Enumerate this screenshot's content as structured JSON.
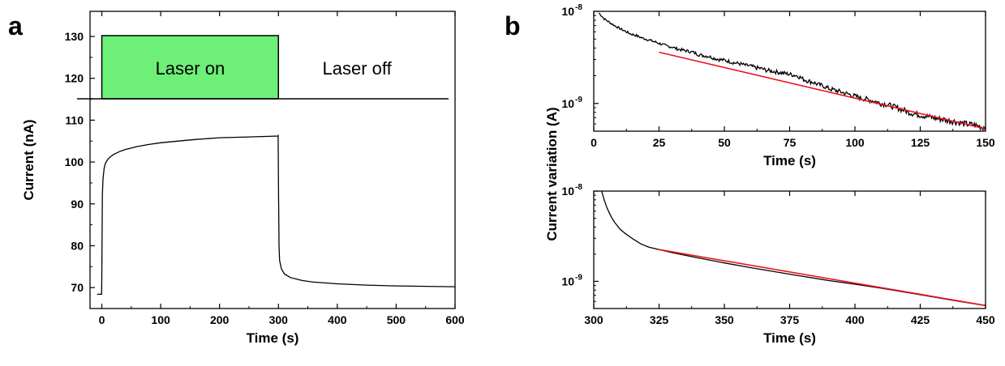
{
  "chart_data": [
    {
      "panel": "a",
      "type": "line",
      "xlabel": "Time (s)",
      "ylabel": "Current (nA)",
      "xlim": [
        -20,
        600
      ],
      "ylim": [
        65,
        136
      ],
      "xticks": [
        0,
        100,
        200,
        300,
        400,
        500,
        600
      ],
      "yticks": [
        70,
        80,
        90,
        100,
        110,
        120,
        130
      ],
      "annotations": [
        {
          "text": "Laser on",
          "x_from": 0,
          "x_to": 300,
          "fill": "#6EEF78"
        },
        {
          "text": "Laser off",
          "x_from": 300,
          "x_to": 600
        }
      ],
      "series": [
        {
          "color": "#000000",
          "x": [
            -8,
            -2,
            -0.5,
            0,
            1,
            2,
            4,
            6,
            10,
            15,
            20,
            30,
            40,
            60,
            80,
            100,
            130,
            160,
            200,
            250,
            299,
            299.5,
            300,
            301,
            302,
            305,
            310,
            320,
            340,
            360,
            400,
            450,
            500,
            550,
            600
          ],
          "y": [
            68.4,
            68.4,
            68.4,
            72,
            92,
            96,
            98.5,
            99.7,
            100.6,
            101.3,
            101.8,
            102.5,
            103.0,
            103.7,
            104.2,
            104.6,
            105.0,
            105.4,
            105.8,
            106.0,
            106.2,
            106.3,
            95,
            80,
            76.5,
            74.5,
            73.3,
            72.4,
            71.7,
            71.3,
            70.9,
            70.6,
            70.4,
            70.3,
            70.2
          ]
        }
      ]
    },
    {
      "panel": "b-top",
      "type": "line",
      "xlabel": "Time (s)",
      "ylabel": "Current variation (A)",
      "yscale": "log",
      "xlim": [
        0,
        150
      ],
      "ylim": [
        5e-10,
        1e-08
      ],
      "xticks": [
        0,
        25,
        50,
        75,
        100,
        125,
        150
      ],
      "yticks": [
        1e-09,
        1e-08
      ],
      "series": [
        {
          "color": "#000000",
          "x": [
            2,
            4,
            6,
            8,
            10,
            12,
            14,
            16,
            18,
            20,
            22,
            24,
            26,
            28,
            30,
            32,
            34,
            36,
            38,
            40,
            42,
            44,
            46,
            48,
            50,
            52,
            54,
            56,
            58,
            60,
            62,
            64,
            66,
            68,
            70,
            72,
            74,
            76,
            78,
            80,
            82,
            84,
            86,
            88,
            90,
            92,
            94,
            96,
            98,
            100,
            102,
            104,
            106,
            108,
            110,
            112,
            114,
            116,
            118,
            120,
            122,
            124,
            126,
            128,
            130,
            132,
            134,
            136,
            138,
            140,
            142,
            144,
            146,
            148,
            150
          ],
          "y": [
            9.6e-09,
            8.3e-09,
            7.6e-09,
            7e-09,
            6.5e-09,
            6.1e-09,
            5.7e-09,
            5.5e-09,
            5.2e-09,
            5e-09,
            4.8e-09,
            4.6e-09,
            4.4e-09,
            4.2e-09,
            4.1e-09,
            3.9e-09,
            3.8e-09,
            3.7e-09,
            3.6e-09,
            3.4e-09,
            3.3e-09,
            3.25e-09,
            3.1e-09,
            3e-09,
            2.95e-09,
            2.85e-09,
            2.75e-09,
            2.7e-09,
            2.6e-09,
            2.55e-09,
            2.45e-09,
            2.4e-09,
            2.3e-09,
            2.25e-09,
            2.2e-09,
            2.15e-09,
            2.1e-09,
            2.05e-09,
            2e-09,
            1.85e-09,
            1.75e-09,
            1.7e-09,
            1.6e-09,
            1.55e-09,
            1.45e-09,
            1.4e-09,
            1.35e-09,
            1.3e-09,
            1.25e-09,
            1.2e-09,
            1.15e-09,
            1.12e-09,
            1.08e-09,
            1.05e-09,
            1e-09,
            9.8e-10,
            9.4e-10,
            9e-10,
            8.6e-10,
            8.2e-10,
            7.8e-10,
            7.6e-10,
            7.4e-10,
            7.2e-10,
            7e-10,
            6.8e-10,
            6.7e-10,
            6.5e-10,
            6.4e-10,
            6.2e-10,
            6e-10,
            5.9e-10,
            5.8e-10,
            5.6e-10,
            5.5e-10
          ],
          "noise": true
        },
        {
          "color": "#E8141B",
          "x": [
            25,
            150
          ],
          "y": [
            3.6e-09,
            5.3e-10
          ]
        }
      ]
    },
    {
      "panel": "b-bottom",
      "type": "line",
      "xlabel": "Time (s)",
      "ylabel": "Current variation (A)",
      "yscale": "log",
      "xlim": [
        300,
        450
      ],
      "ylim": [
        5e-10,
        1e-08
      ],
      "xticks": [
        300,
        325,
        350,
        375,
        400,
        425,
        450
      ],
      "yticks": [
        1e-09,
        1e-08
      ],
      "series": [
        {
          "color": "#000000",
          "x": [
            303,
            304,
            305,
            306,
            307,
            308,
            310,
            312,
            315,
            318,
            321,
            325,
            330,
            340,
            350,
            360,
            375,
            390,
            400,
            410,
            425,
            440,
            450
          ],
          "y": [
            1e-08,
            8e-09,
            6.6e-09,
            5.7e-09,
            5e-09,
            4.5e-09,
            3.8e-09,
            3.4e-09,
            2.95e-09,
            2.6e-09,
            2.4e-09,
            2.25e-09,
            2.08e-09,
            1.82e-09,
            1.6e-09,
            1.42e-09,
            1.2e-09,
            1.02e-09,
            9.3e-10,
            8.4e-10,
            7.1e-10,
            6e-10,
            5.4e-10
          ]
        },
        {
          "color": "#E8141B",
          "x": [
            325,
            450
          ],
          "y": [
            2.25e-09,
            5.4e-10
          ]
        }
      ]
    }
  ],
  "panel_labels": {
    "a": "a",
    "b": "b"
  },
  "region_labels": {
    "laser_on": "Laser on",
    "laser_off": "Laser off"
  },
  "colors": {
    "laser_on_fill": "#6EEF78",
    "fit_line": "#E8141B",
    "data_line": "#000000"
  }
}
